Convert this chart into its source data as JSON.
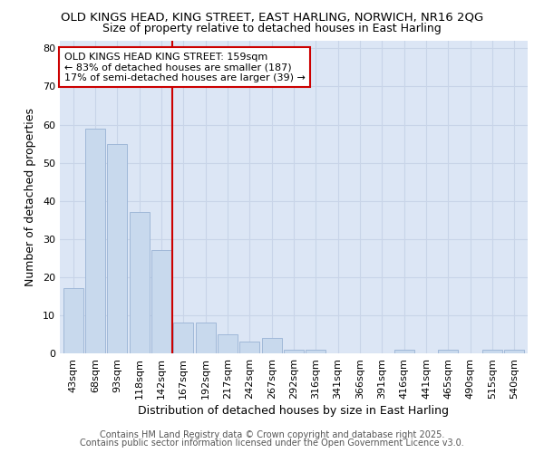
{
  "title1": "OLD KINGS HEAD, KING STREET, EAST HARLING, NORWICH, NR16 2QG",
  "title2": "Size of property relative to detached houses in East Harling",
  "xlabel": "Distribution of detached houses by size in East Harling",
  "ylabel": "Number of detached properties",
  "categories": [
    "43sqm",
    "68sqm",
    "93sqm",
    "118sqm",
    "142sqm",
    "167sqm",
    "192sqm",
    "217sqm",
    "242sqm",
    "267sqm",
    "292sqm",
    "316sqm",
    "341sqm",
    "366sqm",
    "391sqm",
    "416sqm",
    "441sqm",
    "465sqm",
    "490sqm",
    "515sqm",
    "540sqm"
  ],
  "values": [
    17,
    59,
    55,
    37,
    27,
    8,
    8,
    5,
    3,
    4,
    1,
    1,
    0,
    0,
    0,
    1,
    0,
    1,
    0,
    1,
    1
  ],
  "bar_color": "#c8d9ed",
  "bar_edge_color": "#a0b8d8",
  "bar_width": 0.9,
  "red_line_x": 4.5,
  "annotation_text": "OLD KINGS HEAD KING STREET: 159sqm\n← 83% of detached houses are smaller (187)\n17% of semi-detached houses are larger (39) →",
  "annotation_box_color": "white",
  "annotation_box_edge_color": "#cc0000",
  "red_line_color": "#cc0000",
  "ylim": [
    0,
    82
  ],
  "yticks": [
    0,
    10,
    20,
    30,
    40,
    50,
    60,
    70,
    80
  ],
  "grid_color": "#c8d4e8",
  "bg_color": "#dce6f5",
  "footnote1": "Contains HM Land Registry data © Crown copyright and database right 2025.",
  "footnote2": "Contains public sector information licensed under the Open Government Licence v3.0.",
  "title_fontsize": 9.5,
  "subtitle_fontsize": 9,
  "label_fontsize": 9,
  "tick_fontsize": 8,
  "annotation_fontsize": 8,
  "footnote_fontsize": 7
}
